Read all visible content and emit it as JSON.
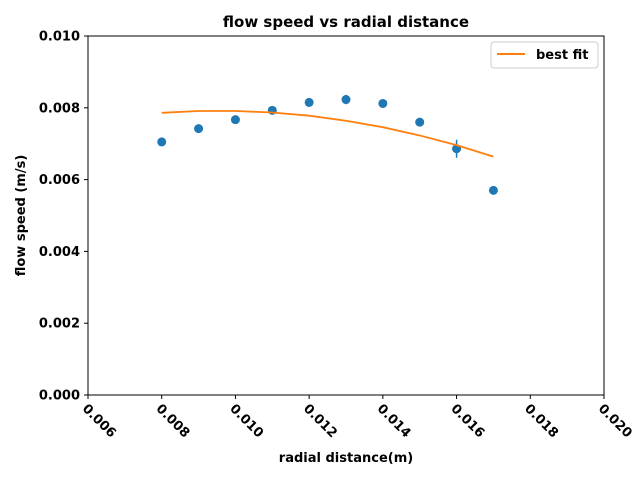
{
  "chart_data": {
    "type": "scatter",
    "title": "flow speed vs radial distance",
    "xlabel": "radial distance(m)",
    "ylabel": "flow speed (m/s)",
    "xlim": [
      0.006,
      0.02
    ],
    "ylim": [
      0.0,
      0.01
    ],
    "xticks": [
      "0.006",
      "0.008",
      "0.010",
      "0.012",
      "0.014",
      "0.016",
      "0.018",
      "0.020"
    ],
    "yticks": [
      "0.000",
      "0.002",
      "0.004",
      "0.006",
      "0.008",
      "0.010"
    ],
    "grid": false,
    "legend_position": "top-right",
    "series": [
      {
        "kind": "errorbar-points",
        "color": "#1f77b4",
        "x": [
          0.008,
          0.009,
          0.01,
          0.011,
          0.012,
          0.013,
          0.014,
          0.015,
          0.016,
          0.017
        ],
        "y": [
          0.00705,
          0.00742,
          0.00767,
          0.00793,
          0.00815,
          0.00823,
          0.00812,
          0.0076,
          0.00686,
          0.0057
        ],
        "yerr": [
          6e-05,
          0.0001,
          0.00012,
          8e-05,
          8e-05,
          0.00013,
          0.0001,
          5e-05,
          0.00025,
          3e-05
        ]
      },
      {
        "kind": "line",
        "name": "best fit",
        "color": "#ff7f0e",
        "x": [
          0.008,
          0.009,
          0.01,
          0.011,
          0.012,
          0.013,
          0.014,
          0.015,
          0.016,
          0.017
        ],
        "y": [
          0.00786,
          0.00791,
          0.00791,
          0.00787,
          0.00778,
          0.00764,
          0.00746,
          0.00723,
          0.00696,
          0.00664
        ]
      }
    ]
  }
}
